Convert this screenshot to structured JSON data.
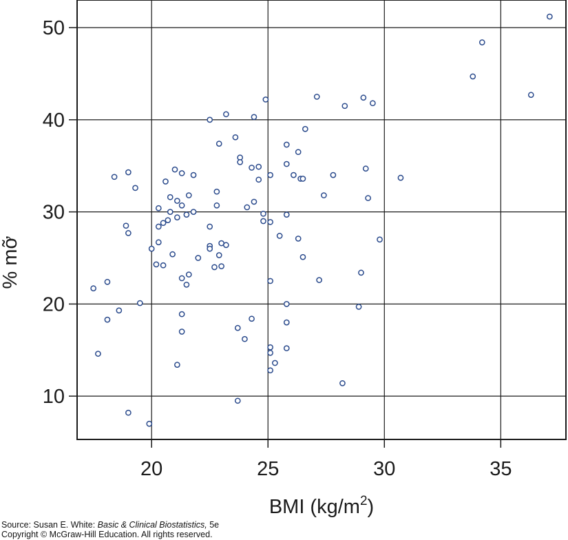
{
  "chart_data": {
    "type": "scatter",
    "xlabel": "BMI (kg/m",
    "xlabel_sup": "2",
    "xlabel_end": ")",
    "ylabel": "% mỡ",
    "xlim": [
      16.8,
      37.8
    ],
    "ylim": [
      5.3,
      53
    ],
    "x_ticks": [
      20,
      25,
      30,
      35
    ],
    "y_ticks": [
      10,
      20,
      30,
      40,
      50
    ],
    "x_tick_labels": [
      "20",
      "25",
      "30",
      "35"
    ],
    "y_tick_labels": [
      "10",
      "20",
      "30",
      "40",
      "50"
    ],
    "grid": true,
    "marker": "open-circle",
    "marker_color": "#2a4a8c",
    "points": [
      [
        17.5,
        21.7
      ],
      [
        17.7,
        14.6
      ],
      [
        18.1,
        22.4
      ],
      [
        18.1,
        18.3
      ],
      [
        18.4,
        33.8
      ],
      [
        18.6,
        19.3
      ],
      [
        18.9,
        28.5
      ],
      [
        19.0,
        27.7
      ],
      [
        19.0,
        34.3
      ],
      [
        19.0,
        8.2
      ],
      [
        19.3,
        32.6
      ],
      [
        19.5,
        20.1
      ],
      [
        19.9,
        7.0
      ],
      [
        20.0,
        26.0
      ],
      [
        20.2,
        24.3
      ],
      [
        20.3,
        30.4
      ],
      [
        20.3,
        28.4
      ],
      [
        20.3,
        26.7
      ],
      [
        20.5,
        28.8
      ],
      [
        20.5,
        24.2
      ],
      [
        20.6,
        33.3
      ],
      [
        20.7,
        29.1
      ],
      [
        20.8,
        31.6
      ],
      [
        20.8,
        30.0
      ],
      [
        20.9,
        25.4
      ],
      [
        21.0,
        34.6
      ],
      [
        21.1,
        29.4
      ],
      [
        21.1,
        31.2
      ],
      [
        21.1,
        13.4
      ],
      [
        21.3,
        34.2
      ],
      [
        21.3,
        30.7
      ],
      [
        21.3,
        22.8
      ],
      [
        21.3,
        18.9
      ],
      [
        21.3,
        17.0
      ],
      [
        21.5,
        29.7
      ],
      [
        21.5,
        22.1
      ],
      [
        21.6,
        31.8
      ],
      [
        21.6,
        23.2
      ],
      [
        21.8,
        34.0
      ],
      [
        21.8,
        30.0
      ],
      [
        22.0,
        25.0
      ],
      [
        22.5,
        40.0
      ],
      [
        22.5,
        28.4
      ],
      [
        22.5,
        26.3
      ],
      [
        22.5,
        26.0
      ],
      [
        22.7,
        24.0
      ],
      [
        22.8,
        32.2
      ],
      [
        22.8,
        30.7
      ],
      [
        22.9,
        37.4
      ],
      [
        22.9,
        25.3
      ],
      [
        23.0,
        26.6
      ],
      [
        23.0,
        24.1
      ],
      [
        23.2,
        40.6
      ],
      [
        23.2,
        26.4
      ],
      [
        23.6,
        38.1
      ],
      [
        23.7,
        17.4
      ],
      [
        23.7,
        9.5
      ],
      [
        23.8,
        35.9
      ],
      [
        23.8,
        35.4
      ],
      [
        24.0,
        16.2
      ],
      [
        24.1,
        30.5
      ],
      [
        24.3,
        34.8
      ],
      [
        24.3,
        18.4
      ],
      [
        24.4,
        40.3
      ],
      [
        24.4,
        31.1
      ],
      [
        24.6,
        34.9
      ],
      [
        24.6,
        33.5
      ],
      [
        24.8,
        29.8
      ],
      [
        24.8,
        29.0
      ],
      [
        24.9,
        42.2
      ],
      [
        25.1,
        34.0
      ],
      [
        25.1,
        28.9
      ],
      [
        25.1,
        22.5
      ],
      [
        25.1,
        15.3
      ],
      [
        25.1,
        14.7
      ],
      [
        25.1,
        12.8
      ],
      [
        25.3,
        13.6
      ],
      [
        25.5,
        27.4
      ],
      [
        25.8,
        37.3
      ],
      [
        25.8,
        35.2
      ],
      [
        25.8,
        29.7
      ],
      [
        25.8,
        20.0
      ],
      [
        25.8,
        18.0
      ],
      [
        25.8,
        15.2
      ],
      [
        26.1,
        34.0
      ],
      [
        26.3,
        36.5
      ],
      [
        26.3,
        27.1
      ],
      [
        26.4,
        33.6
      ],
      [
        26.5,
        33.6
      ],
      [
        26.5,
        25.1
      ],
      [
        26.6,
        39.0
      ],
      [
        27.1,
        42.5
      ],
      [
        27.2,
        22.6
      ],
      [
        27.4,
        31.8
      ],
      [
        27.8,
        34.0
      ],
      [
        28.2,
        11.4
      ],
      [
        28.3,
        41.5
      ],
      [
        28.9,
        19.7
      ],
      [
        29.0,
        23.4
      ],
      [
        29.1,
        42.4
      ],
      [
        29.2,
        34.7
      ],
      [
        29.3,
        31.5
      ],
      [
        29.5,
        41.8
      ],
      [
        29.8,
        27.0
      ],
      [
        30.7,
        33.7
      ],
      [
        33.8,
        44.7
      ],
      [
        34.2,
        48.4
      ],
      [
        36.3,
        42.7
      ],
      [
        37.1,
        51.2
      ]
    ]
  },
  "source": {
    "prefix": "Source: Susan E. White: ",
    "book": "Basic & Clinical Biostatistics,",
    "edition": " 5e",
    "copyright": "Copyright © McGraw-Hill Education. All rights reserved."
  }
}
